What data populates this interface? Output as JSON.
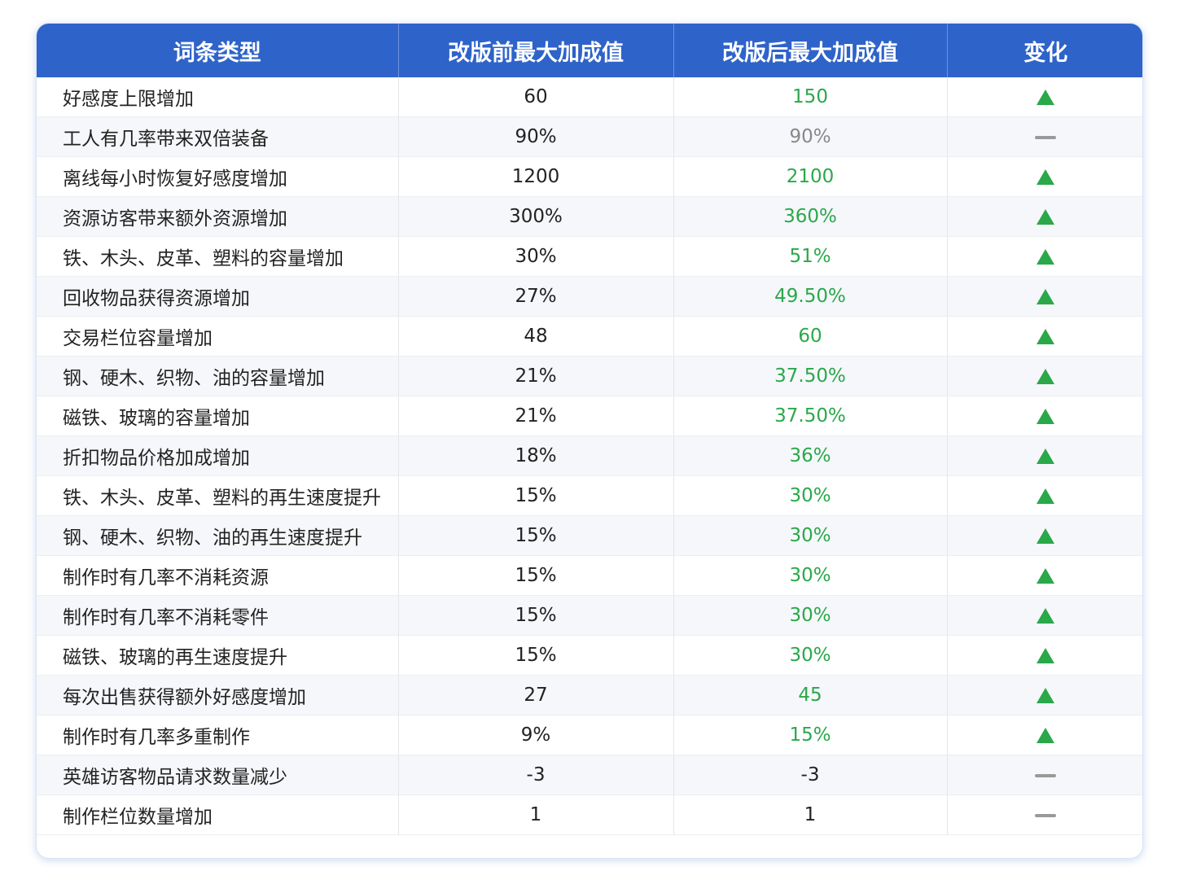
{
  "table": {
    "header": [
      "词条类型",
      "改版前最大加成值",
      "改版后最大加成值",
      "变化"
    ],
    "rows": [
      [
        "好感度上限增加",
        "60",
        "150"
      ],
      [
        "工人有几率带来双倍装备",
        "90%",
        "90%"
      ],
      [
        "离线每小时恢复好感度增加",
        "1200",
        "2100"
      ],
      [
        "资源访客带来额外资源增加",
        "300%",
        "360%"
      ],
      [
        "铁、木头、皮革、塑料的容量增加",
        "30%",
        "51%"
      ],
      [
        "回收物品获得资源增加",
        "27%",
        "49.50%"
      ],
      [
        "交易栏位容量增加",
        "48",
        "60"
      ],
      [
        "钢、硬木、织物、油的容量增加",
        "21%",
        "37.50%"
      ],
      [
        "磁铁、玻璃的容量增加",
        "21%",
        "37.50%"
      ],
      [
        "折扣物品价格加成增加",
        "18%",
        "36%"
      ],
      [
        "铁、木头、皮革、塑料的再生速度提升",
        "15%",
        "30%"
      ],
      [
        "钢、硬木、织物、油的再生速度提升",
        "15%",
        "30%"
      ],
      [
        "制作时有几率不消耗资源",
        "15%",
        "30%"
      ],
      [
        "制作时有几率不消耗零件",
        "15%",
        "30%"
      ],
      [
        "磁铁、玻璃的再生速度提升",
        "15%",
        "30%"
      ],
      [
        "每次出售获得额外好感度增加",
        "27",
        "45"
      ],
      [
        "制作时有几率多重制作",
        "9%",
        "15%"
      ],
      [
        "英雄访客物品请求数量减少",
        "-3",
        "-3"
      ],
      [
        "制作栏位数量增加",
        "1",
        "1"
      ]
    ]
  }
}
